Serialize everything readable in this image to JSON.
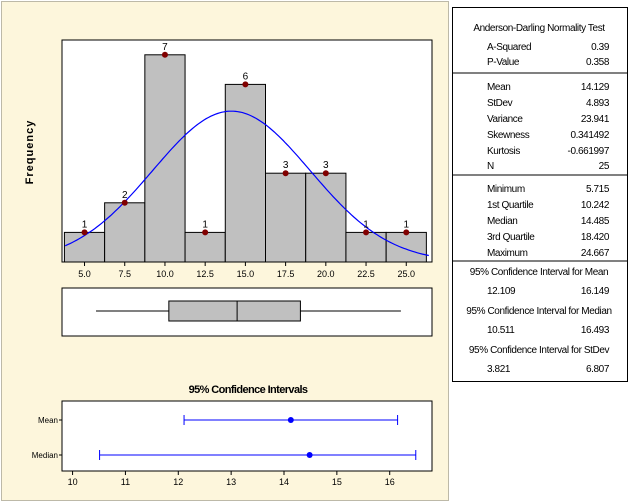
{
  "chart_data": [
    {
      "type": "bar",
      "title": "",
      "xlabel": "",
      "ylabel": "Frequency",
      "bin_edges": [
        3.75,
        6.25,
        8.75,
        11.25,
        13.75,
        16.25,
        18.75,
        21.25,
        23.75,
        26.25
      ],
      "bin_centers": [
        5.0,
        7.5,
        10.0,
        12.5,
        15.0,
        17.5,
        20.0,
        22.5,
        25.0
      ],
      "values": [
        1,
        2,
        7,
        1,
        6,
        3,
        3,
        1,
        1
      ],
      "x_tick_labels": [
        "5.0",
        "7.5",
        "10.0",
        "12.5",
        "15.0",
        "17.5",
        "20.0",
        "22.5",
        "25.0"
      ],
      "xlim": [
        3.6,
        26.6
      ],
      "ylim": [
        0,
        7.5
      ],
      "normal_curve": {
        "mean": 14.129,
        "stdev": 4.893,
        "n": 25,
        "bin_width": 2.5
      },
      "colors": {
        "bar": "#c0c0c0",
        "curve": "#0000ff",
        "marker": "#800000"
      }
    },
    {
      "type": "boxplot",
      "whisker_low": 5.715,
      "q1": 10.242,
      "median": 14.485,
      "q3": 18.42,
      "whisker_high": 24.667,
      "xlim": [
        3.6,
        26.6
      ]
    },
    {
      "type": "interval",
      "title": "95% Confidence Intervals",
      "categories": [
        "Mean",
        "Median"
      ],
      "points": [
        14.129,
        14.485
      ],
      "lower": [
        12.109,
        10.511
      ],
      "upper": [
        16.149,
        16.493
      ],
      "x_ticks": [
        10,
        11,
        12,
        13,
        14,
        15,
        16
      ],
      "xlim": [
        9.8,
        16.8
      ],
      "colors": {
        "interval": "#0000ff"
      }
    }
  ],
  "stats": {
    "test_title": "Anderson-Darling Normality Test",
    "section1": [
      {
        "label": "A-Squared",
        "value": "0.39"
      },
      {
        "label": "P-Value",
        "value": "0.358"
      }
    ],
    "section2": [
      {
        "label": "Mean",
        "value": "14.129"
      },
      {
        "label": "StDev",
        "value": "4.893"
      },
      {
        "label": "Variance",
        "value": "23.941"
      },
      {
        "label": "Skewness",
        "value": "0.341492"
      },
      {
        "label": "Kurtosis",
        "value": "-0.661997"
      },
      {
        "label": "N",
        "value": "25"
      }
    ],
    "section3": [
      {
        "label": "Minimum",
        "value": "5.715"
      },
      {
        "label": "1st Quartile",
        "value": "10.242"
      },
      {
        "label": "Median",
        "value": "14.485"
      },
      {
        "label": "3rd Quartile",
        "value": "18.420"
      },
      {
        "label": "Maximum",
        "value": "24.667"
      }
    ],
    "ci_mean_title": "95% Confidence Interval for Mean",
    "ci_mean": [
      "12.109",
      "16.149"
    ],
    "ci_median_title": "95% Confidence Interval for Median",
    "ci_median": [
      "10.511",
      "16.493"
    ],
    "ci_stdev_title": "95% Confidence Interval for StDev",
    "ci_stdev": [
      "3.821",
      "6.807"
    ]
  }
}
